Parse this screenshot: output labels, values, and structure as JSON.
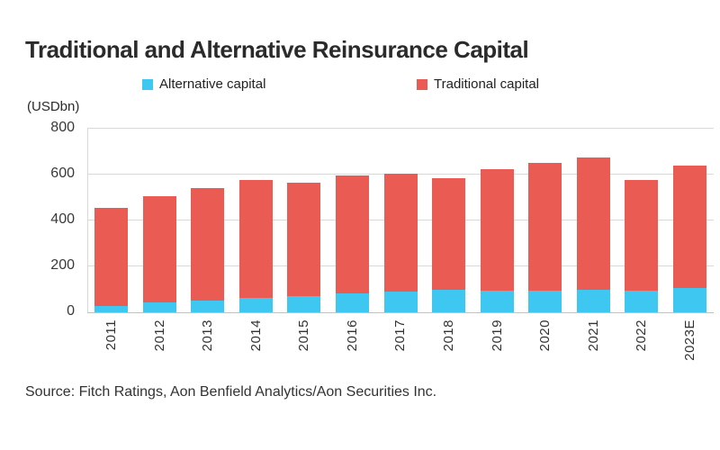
{
  "header": {
    "title": "Traditional and Alternative Reinsurance Capital"
  },
  "legend": [
    {
      "label": "Alternative capital",
      "color": "#3EC7F0"
    },
    {
      "label": "Traditional capital",
      "color": "#EA5B54"
    }
  ],
  "axis_unit_label": "(USDbn)",
  "source": "Source: Fitch Ratings, Aon Benfield Analytics/Aon Securities Inc.",
  "chart_data": {
    "type": "bar",
    "stacked": true,
    "title": "Traditional and Alternative Reinsurance Capital",
    "ylabel": "(USDbn)",
    "xlabel": "",
    "ylim": [
      0,
      800
    ],
    "yticks": [
      0,
      200,
      400,
      600,
      800
    ],
    "grid": true,
    "legend_position": "top",
    "categories": [
      "2011",
      "2012",
      "2013",
      "2014",
      "2015",
      "2016",
      "2017",
      "2018",
      "2019",
      "2020",
      "2021",
      "2022",
      "2023E"
    ],
    "series": [
      {
        "name": "Alternative capital",
        "color": "#3EC7F0",
        "values": [
          28,
          44,
          50,
          64,
          72,
          81,
          89,
          97,
          95,
          94,
          97,
          93,
          105
        ]
      },
      {
        "name": "Traditional capital",
        "color": "#EA5B54",
        "values": [
          427,
          461,
          490,
          511,
          493,
          514,
          516,
          488,
          530,
          556,
          578,
          482,
          535
        ]
      }
    ],
    "totals": [
      455,
      505,
      540,
      575,
      565,
      595,
      605,
      585,
      625,
      650,
      675,
      575,
      640
    ]
  }
}
